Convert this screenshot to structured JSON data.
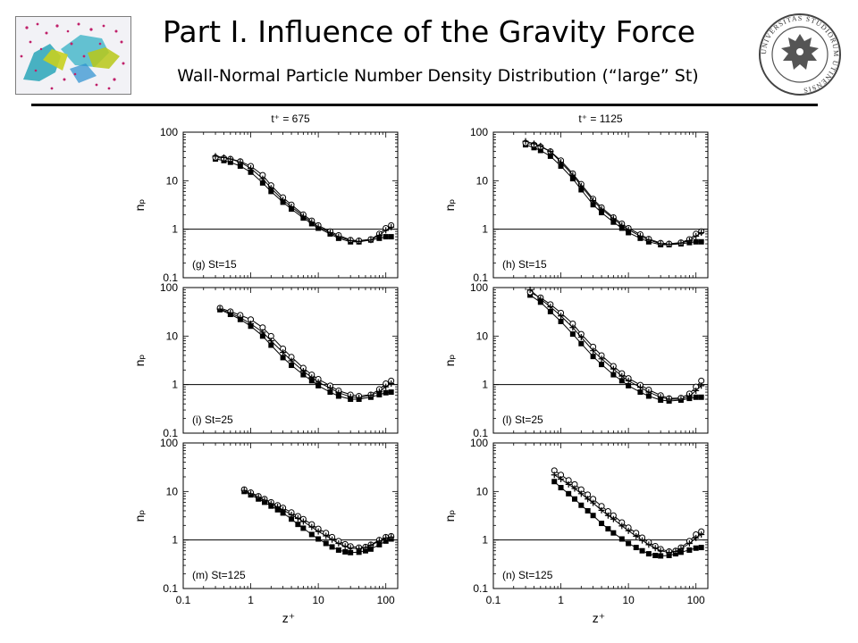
{
  "header": {
    "title": "Part I. Influence of the Gravity Force",
    "subtitle": "Wall-Normal Particle Number Density Distribution (“large” St)"
  },
  "logo": {
    "text": "UNIVERSITAS STUDIORUM UTINENSIS"
  },
  "colors": {
    "marker": "#000000",
    "axis": "#000000",
    "thumb_bg": "#f4f4f8"
  },
  "chart_data": [
    {
      "type": "scatter",
      "panel": "g",
      "column_title": "t⁺ = 675",
      "label": "(g) St=15",
      "xlabel": "",
      "ylabel": "nₚ",
      "xscale": "log",
      "yscale": "log",
      "xlim": [
        0.1,
        150
      ],
      "ylim": [
        0.1,
        100
      ],
      "xticks": [
        "0.1",
        "1",
        "10",
        "100"
      ],
      "yticks": [
        "0.1",
        "1",
        "10",
        "100"
      ],
      "reference_line_y": 1,
      "series": [
        {
          "marker": "filled-square",
          "x": [
            0.3,
            0.4,
            0.5,
            0.7,
            1,
            1.5,
            2,
            3,
            4,
            6,
            8,
            10,
            15,
            20,
            30,
            40,
            60,
            80,
            100,
            120
          ],
          "y": [
            28,
            26,
            24,
            20,
            15,
            9,
            6,
            3.6,
            2.6,
            1.7,
            1.3,
            1.05,
            0.8,
            0.65,
            0.55,
            0.55,
            0.6,
            0.65,
            0.7,
            0.7
          ]
        },
        {
          "marker": "open-circle",
          "x": [
            0.3,
            0.4,
            0.5,
            0.7,
            1,
            1.5,
            2,
            3,
            4,
            6,
            8,
            10,
            15,
            20,
            30,
            40,
            60,
            80,
            100,
            120
          ],
          "y": [
            30,
            29,
            28,
            25,
            20,
            13,
            8,
            4.5,
            3.2,
            2,
            1.5,
            1.2,
            0.9,
            0.75,
            0.6,
            0.58,
            0.62,
            0.8,
            1.05,
            1.2
          ]
        },
        {
          "marker": "plus",
          "x": [
            0.3,
            0.4,
            0.5,
            0.7,
            1,
            1.5,
            2,
            3,
            4,
            6,
            8,
            10,
            15,
            20,
            30,
            40,
            60,
            80,
            100,
            120
          ],
          "y": [
            32,
            30,
            28,
            24,
            18,
            11,
            7,
            4,
            2.9,
            1.85,
            1.4,
            1.12,
            0.85,
            0.7,
            0.58,
            0.56,
            0.6,
            0.75,
            0.95,
            1.1
          ]
        }
      ]
    },
    {
      "type": "scatter",
      "panel": "h",
      "column_title": "t⁺ = 1125",
      "label": "(h) St=15",
      "xlabel": "",
      "ylabel": "nₚ",
      "xscale": "log",
      "yscale": "log",
      "xlim": [
        0.1,
        150
      ],
      "ylim": [
        0.1,
        100
      ],
      "xticks": [
        "0.1",
        "1",
        "10",
        "100"
      ],
      "yticks": [
        "0.1",
        "1",
        "10",
        "100"
      ],
      "reference_line_y": 1,
      "series": [
        {
          "marker": "filled-square",
          "x": [
            0.3,
            0.4,
            0.5,
            0.7,
            1,
            1.5,
            2,
            3,
            4,
            6,
            8,
            10,
            15,
            20,
            30,
            40,
            60,
            80,
            100,
            120
          ],
          "y": [
            55,
            48,
            42,
            32,
            20,
            11,
            6.5,
            3.2,
            2.2,
            1.4,
            1.05,
            0.85,
            0.65,
            0.55,
            0.48,
            0.48,
            0.5,
            0.53,
            0.55,
            0.55
          ]
        },
        {
          "marker": "open-circle",
          "x": [
            0.3,
            0.4,
            0.5,
            0.7,
            1,
            1.5,
            2,
            3,
            4,
            6,
            8,
            10,
            15,
            20,
            30,
            40,
            60,
            80,
            100,
            120
          ],
          "y": [
            60,
            55,
            50,
            40,
            26,
            14,
            8.5,
            4.2,
            2.8,
            1.75,
            1.3,
            1.05,
            0.78,
            0.63,
            0.52,
            0.5,
            0.53,
            0.62,
            0.8,
            0.9
          ]
        },
        {
          "marker": "plus",
          "x": [
            0.3,
            0.4,
            0.5,
            0.7,
            1,
            1.5,
            2,
            3,
            4,
            6,
            8,
            10,
            15,
            20,
            30,
            40,
            60,
            80,
            100,
            120
          ],
          "y": [
            65,
            58,
            52,
            40,
            24,
            13,
            7.8,
            3.9,
            2.6,
            1.65,
            1.2,
            0.98,
            0.72,
            0.6,
            0.5,
            0.49,
            0.52,
            0.58,
            0.72,
            0.85
          ]
        }
      ]
    },
    {
      "type": "scatter",
      "panel": "i",
      "column_title": "",
      "label": "(i) St=25",
      "xlabel": "",
      "ylabel": "nₚ",
      "xscale": "log",
      "yscale": "log",
      "xlim": [
        0.1,
        150
      ],
      "ylim": [
        0.1,
        100
      ],
      "xticks": [
        "0.1",
        "1",
        "10",
        "100"
      ],
      "yticks": [
        "0.1",
        "1",
        "10",
        "100"
      ],
      "reference_line_y": 1,
      "series": [
        {
          "marker": "filled-square",
          "x": [
            0.35,
            0.5,
            0.7,
            1,
            1.5,
            2,
            3,
            4,
            6,
            8,
            10,
            15,
            20,
            30,
            40,
            60,
            80,
            100,
            120
          ],
          "y": [
            35,
            28,
            22,
            16,
            10,
            6.5,
            3.6,
            2.5,
            1.6,
            1.2,
            0.95,
            0.7,
            0.58,
            0.5,
            0.5,
            0.55,
            0.62,
            0.68,
            0.7
          ]
        },
        {
          "marker": "open-circle",
          "x": [
            0.35,
            0.5,
            0.7,
            1,
            1.5,
            2,
            3,
            4,
            6,
            8,
            10,
            15,
            20,
            30,
            40,
            60,
            80,
            100,
            120
          ],
          "y": [
            38,
            32,
            27,
            22,
            15,
            10,
            5.5,
            3.7,
            2.2,
            1.6,
            1.3,
            0.95,
            0.75,
            0.62,
            0.58,
            0.62,
            0.8,
            1.05,
            1.2
          ]
        },
        {
          "marker": "plus",
          "x": [
            0.35,
            0.5,
            0.7,
            1,
            1.5,
            2,
            3,
            4,
            6,
            8,
            10,
            15,
            20,
            30,
            40,
            60,
            80,
            100,
            120
          ],
          "y": [
            36,
            30,
            24,
            18,
            12,
            8,
            4.6,
            3.1,
            1.9,
            1.4,
            1.12,
            0.85,
            0.68,
            0.56,
            0.54,
            0.6,
            0.72,
            0.9,
            1.05
          ]
        }
      ]
    },
    {
      "type": "scatter",
      "panel": "l",
      "column_title": "",
      "label": "(l) St=25",
      "xlabel": "",
      "ylabel": "nₚ",
      "xscale": "log",
      "yscale": "log",
      "xlim": [
        0.1,
        150
      ],
      "ylim": [
        0.1,
        100
      ],
      "xticks": [
        "0.1",
        "1",
        "10",
        "100"
      ],
      "yticks": [
        "0.1",
        "1",
        "10",
        "100"
      ],
      "reference_line_y": 1,
      "series": [
        {
          "marker": "filled-square",
          "x": [
            0.35,
            0.5,
            0.7,
            1,
            1.5,
            2,
            3,
            4,
            6,
            8,
            10,
            15,
            20,
            30,
            40,
            60,
            80,
            100,
            120
          ],
          "y": [
            70,
            50,
            32,
            20,
            11,
            7,
            3.8,
            2.6,
            1.6,
            1.2,
            0.95,
            0.7,
            0.58,
            0.48,
            0.46,
            0.48,
            0.52,
            0.55,
            0.55
          ]
        },
        {
          "marker": "open-circle",
          "x": [
            0.35,
            0.5,
            0.7,
            1,
            1.5,
            2,
            3,
            4,
            6,
            8,
            10,
            15,
            20,
            30,
            40,
            60,
            80,
            100,
            120
          ],
          "y": [
            80,
            62,
            45,
            30,
            18,
            11,
            6,
            4,
            2.4,
            1.7,
            1.35,
            0.98,
            0.78,
            0.6,
            0.52,
            0.53,
            0.65,
            0.9,
            1.2
          ]
        },
        {
          "marker": "plus",
          "x": [
            0.35,
            0.5,
            0.7,
            1,
            1.5,
            2,
            3,
            4,
            6,
            8,
            10,
            15,
            20,
            30,
            40,
            60,
            80,
            100,
            120
          ],
          "y": [
            90,
            58,
            40,
            26,
            15,
            9.5,
            5,
            3.4,
            2.1,
            1.5,
            1.2,
            0.88,
            0.7,
            0.55,
            0.5,
            0.5,
            0.58,
            0.75,
            0.95
          ]
        }
      ]
    },
    {
      "type": "scatter",
      "panel": "m",
      "column_title": "",
      "label": "(m) St=125",
      "xlabel": "z⁺",
      "ylabel": "nₚ",
      "xscale": "log",
      "yscale": "log",
      "xlim": [
        0.1,
        150
      ],
      "ylim": [
        0.1,
        100
      ],
      "xticks": [
        "0.1",
        "1",
        "10",
        "100"
      ],
      "yticks": [
        "0.1",
        "1",
        "10",
        "100"
      ],
      "reference_line_y": 1,
      "series": [
        {
          "marker": "filled-square",
          "x": [
            0.8,
            1,
            1.3,
            1.6,
            2,
            2.5,
            3,
            4,
            5,
            6,
            8,
            10,
            13,
            16,
            20,
            25,
            30,
            40,
            50,
            60,
            80,
            100,
            120
          ],
          "y": [
            10,
            8.5,
            7,
            6,
            5,
            4.2,
            3.6,
            2.7,
            2.1,
            1.75,
            1.3,
            1.05,
            0.85,
            0.72,
            0.62,
            0.57,
            0.55,
            0.56,
            0.6,
            0.65,
            0.8,
            0.95,
            1.05
          ]
        },
        {
          "marker": "open-circle",
          "x": [
            0.8,
            1,
            1.3,
            1.6,
            2,
            2.5,
            3,
            4,
            5,
            6,
            8,
            10,
            13,
            16,
            20,
            25,
            30,
            40,
            50,
            60,
            80,
            100,
            120
          ],
          "y": [
            11,
            9.5,
            8,
            7,
            6,
            5.2,
            4.6,
            3.7,
            3.1,
            2.7,
            2.1,
            1.7,
            1.4,
            1.15,
            0.95,
            0.82,
            0.74,
            0.7,
            0.72,
            0.8,
            1,
            1.15,
            1.2
          ]
        },
        {
          "marker": "plus",
          "x": [
            0.8,
            1,
            1.3,
            1.6,
            2,
            2.5,
            3,
            4,
            5,
            6,
            8,
            10,
            13,
            16,
            20,
            25,
            30,
            40,
            50,
            60,
            80,
            100,
            120
          ],
          "y": [
            10.5,
            9,
            7.6,
            6.6,
            5.6,
            4.8,
            4.2,
            3.3,
            2.8,
            2.4,
            1.85,
            1.5,
            1.22,
            1.02,
            0.85,
            0.74,
            0.68,
            0.66,
            0.7,
            0.78,
            0.95,
            1.1,
            1.15
          ]
        }
      ]
    },
    {
      "type": "scatter",
      "panel": "n",
      "column_title": "",
      "label": "(n) St=125",
      "xlabel": "z⁺",
      "ylabel": "nₚ",
      "xscale": "log",
      "yscale": "log",
      "xlim": [
        0.1,
        150
      ],
      "ylim": [
        0.1,
        100
      ],
      "xticks": [
        "0.1",
        "1",
        "10",
        "100"
      ],
      "yticks": [
        "0.1",
        "1",
        "10",
        "100"
      ],
      "reference_line_y": 1,
      "series": [
        {
          "marker": "filled-square",
          "x": [
            0.8,
            1,
            1.3,
            1.6,
            2,
            2.5,
            3,
            4,
            5,
            6,
            8,
            10,
            13,
            16,
            20,
            25,
            30,
            40,
            50,
            60,
            80,
            100,
            120
          ],
          "y": [
            16,
            12,
            9,
            7,
            5.2,
            4,
            3.2,
            2.2,
            1.7,
            1.4,
            1.05,
            0.85,
            0.7,
            0.6,
            0.52,
            0.48,
            0.47,
            0.48,
            0.52,
            0.56,
            0.62,
            0.68,
            0.7
          ]
        },
        {
          "marker": "open-circle",
          "x": [
            0.8,
            1,
            1.3,
            1.6,
            2,
            2.5,
            3,
            4,
            5,
            6,
            8,
            10,
            13,
            16,
            20,
            25,
            30,
            40,
            50,
            60,
            80,
            100,
            120
          ],
          "y": [
            27,
            22,
            17,
            14,
            11,
            8.6,
            7,
            5,
            3.9,
            3.2,
            2.3,
            1.8,
            1.4,
            1.12,
            0.9,
            0.75,
            0.65,
            0.58,
            0.6,
            0.7,
            0.95,
            1.3,
            1.5
          ]
        },
        {
          "marker": "plus",
          "x": [
            0.8,
            1,
            1.3,
            1.6,
            2,
            2.5,
            3,
            4,
            5,
            6,
            8,
            10,
            13,
            16,
            20,
            25,
            30,
            40,
            50,
            60,
            80,
            100,
            120
          ],
          "y": [
            22,
            18,
            14,
            11.5,
            9,
            7,
            5.8,
            4.1,
            3.2,
            2.7,
            1.95,
            1.55,
            1.2,
            0.98,
            0.8,
            0.68,
            0.6,
            0.55,
            0.58,
            0.66,
            0.85,
            1.1,
            1.3
          ]
        }
      ]
    }
  ]
}
